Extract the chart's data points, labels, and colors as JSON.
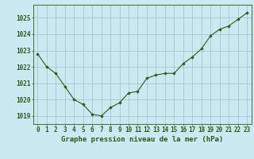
{
  "x": [
    0,
    1,
    2,
    3,
    4,
    5,
    6,
    7,
    8,
    9,
    10,
    11,
    12,
    13,
    14,
    15,
    16,
    17,
    18,
    19,
    20,
    21,
    22,
    23
  ],
  "y": [
    1022.8,
    1022.0,
    1021.6,
    1020.8,
    1020.0,
    1019.7,
    1019.1,
    1019.0,
    1019.5,
    1019.8,
    1020.4,
    1020.5,
    1021.3,
    1021.5,
    1021.6,
    1021.6,
    1022.2,
    1022.6,
    1023.1,
    1023.9,
    1024.3,
    1024.5,
    1024.9,
    1025.3
  ],
  "ylim": [
    1018.5,
    1025.8
  ],
  "yticks": [
    1019,
    1020,
    1021,
    1022,
    1023,
    1024,
    1025
  ],
  "xticks": [
    0,
    1,
    2,
    3,
    4,
    5,
    6,
    7,
    8,
    9,
    10,
    11,
    12,
    13,
    14,
    15,
    16,
    17,
    18,
    19,
    20,
    21,
    22,
    23
  ],
  "line_color": "#2d5a1b",
  "marker_color": "#2d5a1b",
  "bg_color": "#c8eaf0",
  "grid_color": "#9dbfc8",
  "title": "Graphe pression niveau de la mer (hPa)",
  "title_color": "#2d5a1b",
  "title_fontsize": 6.5,
  "tick_fontsize": 5.5,
  "tick_color": "#2d5a1b",
  "xlim": [
    -0.5,
    23.5
  ]
}
